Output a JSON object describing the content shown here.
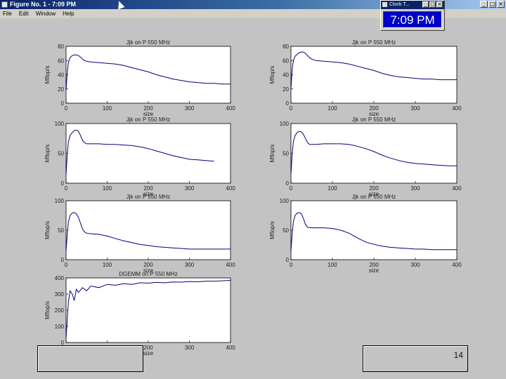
{
  "window": {
    "title": "Figure No. 1 - 7:09 PM",
    "controls": [
      "_",
      "□",
      "×"
    ]
  },
  "menu": {
    "items": [
      "File",
      "Edit",
      "Window",
      "Help"
    ]
  },
  "clock": {
    "title": "Clock T...",
    "time": "7:09 PM",
    "controls": [
      "_",
      "□",
      "×"
    ]
  },
  "footer": {
    "left_box": "",
    "page_number": "14"
  },
  "colors": {
    "line": "#00007a",
    "axes_bg": "#ffffff",
    "figure_bg": "#c3c3c3"
  },
  "chart_data": [
    {
      "type": "line",
      "title": "Jjk on P 550 MHz",
      "xlabel": "size",
      "ylabel": "Mflop/s",
      "xlim": [
        0,
        400
      ],
      "ylim": [
        0,
        80
      ],
      "xticks": [
        0,
        100,
        200,
        300,
        400
      ],
      "yticks": [
        0,
        20,
        40,
        60,
        80
      ],
      "x": [
        0,
        3,
        6,
        10,
        15,
        20,
        25,
        30,
        35,
        40,
        45,
        50,
        60,
        80,
        100,
        120,
        140,
        160,
        180,
        200,
        220,
        240,
        260,
        280,
        300,
        320,
        340,
        360,
        380,
        400
      ],
      "y": [
        18,
        45,
        58,
        64,
        67,
        68,
        68,
        67,
        65,
        62,
        60,
        59,
        58,
        57,
        56,
        55,
        53,
        50,
        47,
        44,
        40,
        37,
        34,
        32,
        30,
        29,
        28,
        28,
        27,
        27
      ]
    },
    {
      "type": "line",
      "title": "Jjk on P 550 MHz",
      "xlabel": "size",
      "ylabel": "Mflop/s",
      "xlim": [
        0,
        400
      ],
      "ylim": [
        0,
        80
      ],
      "xticks": [
        0,
        100,
        200,
        300,
        400
      ],
      "yticks": [
        0,
        20,
        40,
        60,
        80
      ],
      "x": [
        0,
        3,
        6,
        10,
        15,
        20,
        25,
        30,
        35,
        40,
        45,
        50,
        60,
        80,
        100,
        120,
        140,
        160,
        180,
        200,
        220,
        240,
        260,
        280,
        300,
        320,
        340,
        360,
        380,
        400
      ],
      "y": [
        20,
        48,
        60,
        66,
        69,
        71,
        72,
        72,
        70,
        67,
        64,
        62,
        60,
        59,
        58,
        57,
        55,
        52,
        49,
        46,
        42,
        39,
        37,
        36,
        35,
        34,
        34,
        33,
        33,
        33
      ]
    },
    {
      "type": "line",
      "title": "Jjk on P 550 MHz",
      "xlabel": "size",
      "ylabel": "Mflop/s",
      "xlim": [
        0,
        400
      ],
      "ylim": [
        0,
        100
      ],
      "xticks": [
        0,
        100,
        200,
        300,
        400
      ],
      "yticks": [
        0,
        50,
        100
      ],
      "x": [
        0,
        3,
        6,
        10,
        15,
        20,
        25,
        30,
        35,
        40,
        45,
        50,
        60,
        80,
        100,
        120,
        140,
        160,
        180,
        200,
        220,
        240,
        260,
        280,
        300,
        320,
        340,
        360
      ],
      "y": [
        15,
        50,
        70,
        80,
        85,
        88,
        89,
        87,
        80,
        72,
        68,
        66,
        66,
        66,
        65,
        65,
        64,
        63,
        61,
        58,
        54,
        50,
        46,
        43,
        40,
        39,
        38,
        37
      ]
    },
    {
      "type": "line",
      "title": "Jjk on P 550 MHz",
      "xlabel": "size",
      "ylabel": "Mflop/s",
      "xlim": [
        0,
        400
      ],
      "ylim": [
        0,
        100
      ],
      "xticks": [
        0,
        100,
        200,
        300,
        400
      ],
      "yticks": [
        0,
        50,
        100
      ],
      "x": [
        0,
        3,
        6,
        10,
        15,
        20,
        25,
        30,
        35,
        40,
        45,
        50,
        60,
        80,
        100,
        120,
        140,
        160,
        180,
        200,
        220,
        240,
        260,
        280,
        300,
        320,
        340,
        360,
        380,
        400
      ],
      "y": [
        15,
        50,
        70,
        80,
        85,
        87,
        86,
        82,
        75,
        68,
        65,
        65,
        65,
        66,
        66,
        66,
        65,
        62,
        58,
        53,
        47,
        42,
        38,
        35,
        33,
        32,
        31,
        30,
        29,
        29
      ]
    },
    {
      "type": "line",
      "title": "Jjk on P 550 MHz",
      "xlabel": "size",
      "ylabel": "Mflop/s",
      "xlim": [
        0,
        400
      ],
      "ylim": [
        0,
        100
      ],
      "xticks": [
        0,
        100,
        200,
        300,
        400
      ],
      "yticks": [
        0,
        50,
        100
      ],
      "x": [
        0,
        3,
        6,
        10,
        15,
        20,
        25,
        30,
        35,
        40,
        45,
        50,
        60,
        80,
        100,
        120,
        140,
        160,
        180,
        200,
        220,
        240,
        260,
        280,
        300,
        320,
        340,
        360,
        380,
        400
      ],
      "y": [
        15,
        45,
        65,
        75,
        79,
        80,
        78,
        72,
        62,
        52,
        47,
        45,
        44,
        43,
        40,
        36,
        32,
        29,
        26,
        24,
        22,
        21,
        20,
        19,
        18,
        18,
        18,
        18,
        18,
        18
      ]
    },
    {
      "type": "line",
      "title": "Jjk on P 550 MHz",
      "xlabel": "size",
      "ylabel": "Mflop/s",
      "xlim": [
        0,
        400
      ],
      "ylim": [
        0,
        100
      ],
      "xticks": [
        0,
        100,
        200,
        300,
        400
      ],
      "yticks": [
        0,
        50,
        100
      ],
      "x": [
        0,
        3,
        6,
        10,
        15,
        20,
        25,
        30,
        35,
        40,
        50,
        60,
        80,
        100,
        120,
        140,
        160,
        180,
        200,
        220,
        240,
        260,
        280,
        300,
        320,
        340,
        360,
        380,
        400
      ],
      "y": [
        15,
        45,
        65,
        75,
        79,
        80,
        78,
        70,
        60,
        55,
        54,
        54,
        54,
        53,
        50,
        45,
        37,
        30,
        26,
        23,
        21,
        20,
        19,
        18,
        18,
        17,
        17,
        17,
        17
      ]
    },
    {
      "type": "line",
      "title": "DGEMM on P 550 MHz",
      "xlabel": "size",
      "ylabel": "Mflop/s",
      "xlim": [
        0,
        400
      ],
      "ylim": [
        0,
        400
      ],
      "xticks": [
        0,
        100,
        200,
        300,
        400
      ],
      "yticks": [
        0,
        100,
        200,
        300,
        400
      ],
      "x": [
        0,
        3,
        6,
        10,
        15,
        20,
        25,
        30,
        40,
        50,
        60,
        80,
        100,
        120,
        140,
        160,
        180,
        200,
        220,
        240,
        260,
        280,
        300,
        320,
        340,
        360,
        380,
        400
      ],
      "y": [
        30,
        150,
        260,
        320,
        300,
        260,
        330,
        310,
        340,
        320,
        350,
        340,
        360,
        355,
        365,
        360,
        370,
        368,
        372,
        370,
        375,
        374,
        378,
        376,
        380,
        380,
        382,
        385
      ]
    }
  ]
}
